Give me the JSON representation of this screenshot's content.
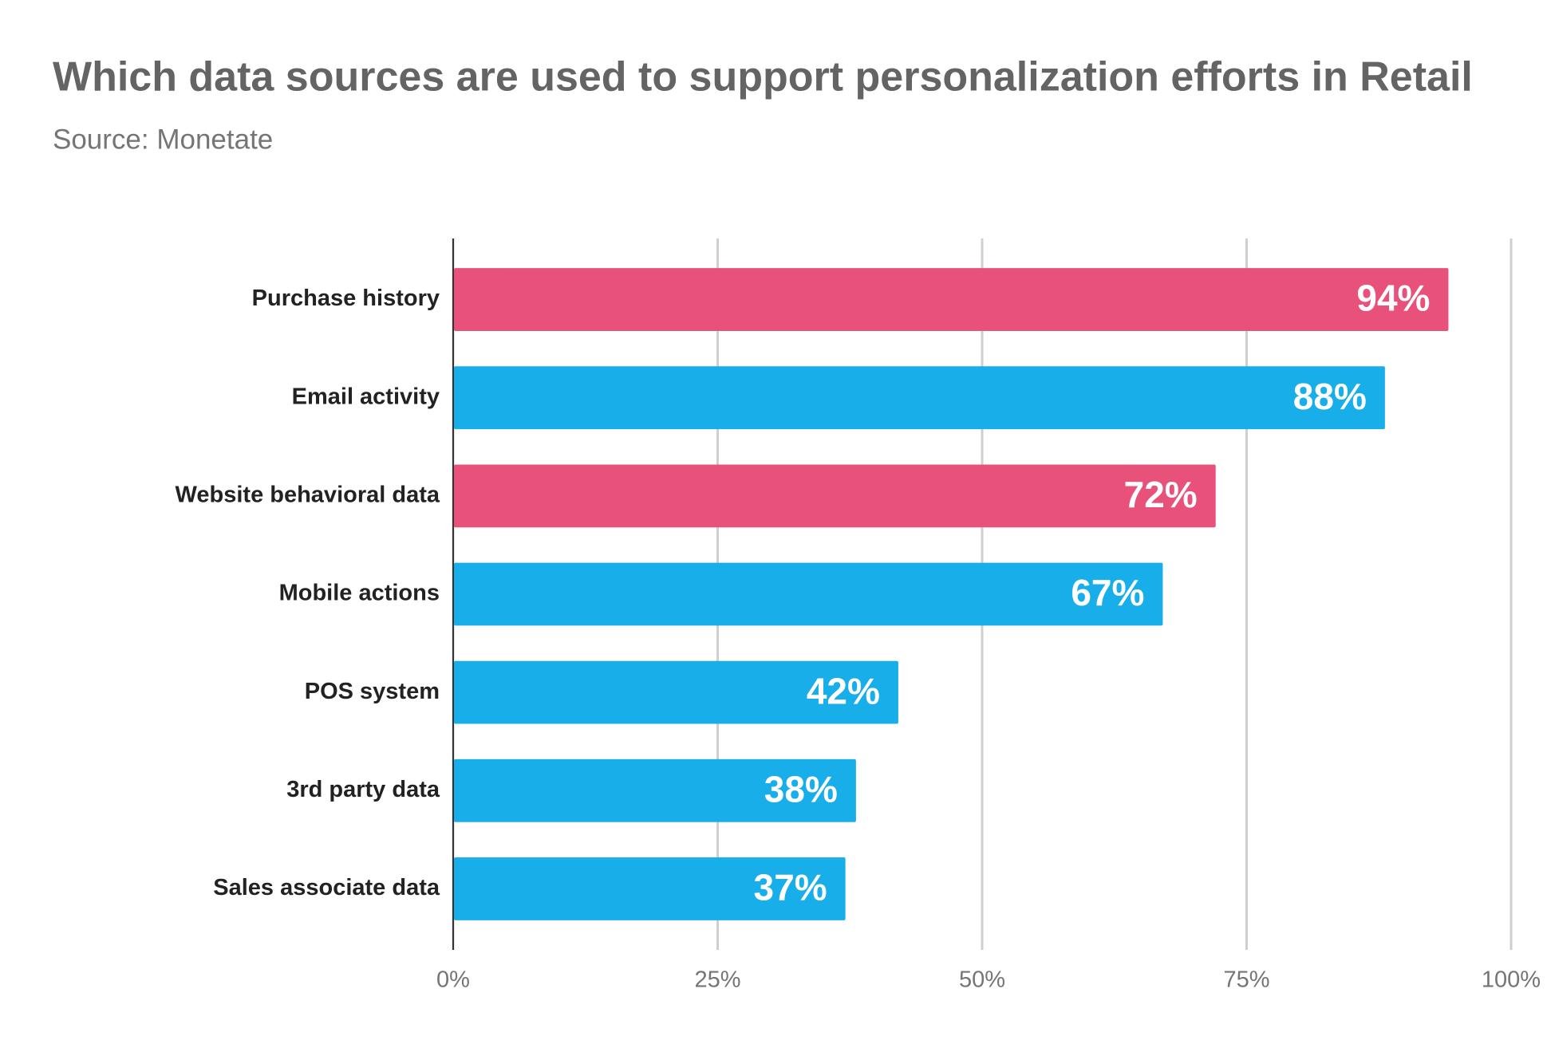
{
  "chart_data": {
    "type": "bar",
    "orientation": "horizontal",
    "title": "Which data sources are used to support personalization efforts in Retail",
    "subtitle": "Source: Monetate",
    "categories": [
      "Purchase history",
      "Email activity",
      "Website behavioral data",
      "Mobile actions",
      "POS system",
      "3rd party data",
      "Sales associate data"
    ],
    "values": [
      94,
      88,
      72,
      67,
      42,
      38,
      37
    ],
    "value_labels": [
      "94%",
      "88%",
      "72%",
      "67%",
      "42%",
      "38%",
      "37%"
    ],
    "colors": [
      "#e8527a",
      "#18aeea",
      "#e8527a",
      "#18aeea",
      "#18aeea",
      "#18aeea",
      "#18aeea"
    ],
    "xlim": [
      0,
      100
    ],
    "xticks": [
      {
        "value": 0,
        "label": "0%"
      },
      {
        "value": 25,
        "label": "25%"
      },
      {
        "value": 50,
        "label": "50%"
      },
      {
        "value": 75,
        "label": "75%"
      },
      {
        "value": 100,
        "label": "100%"
      }
    ],
    "grid": true
  }
}
